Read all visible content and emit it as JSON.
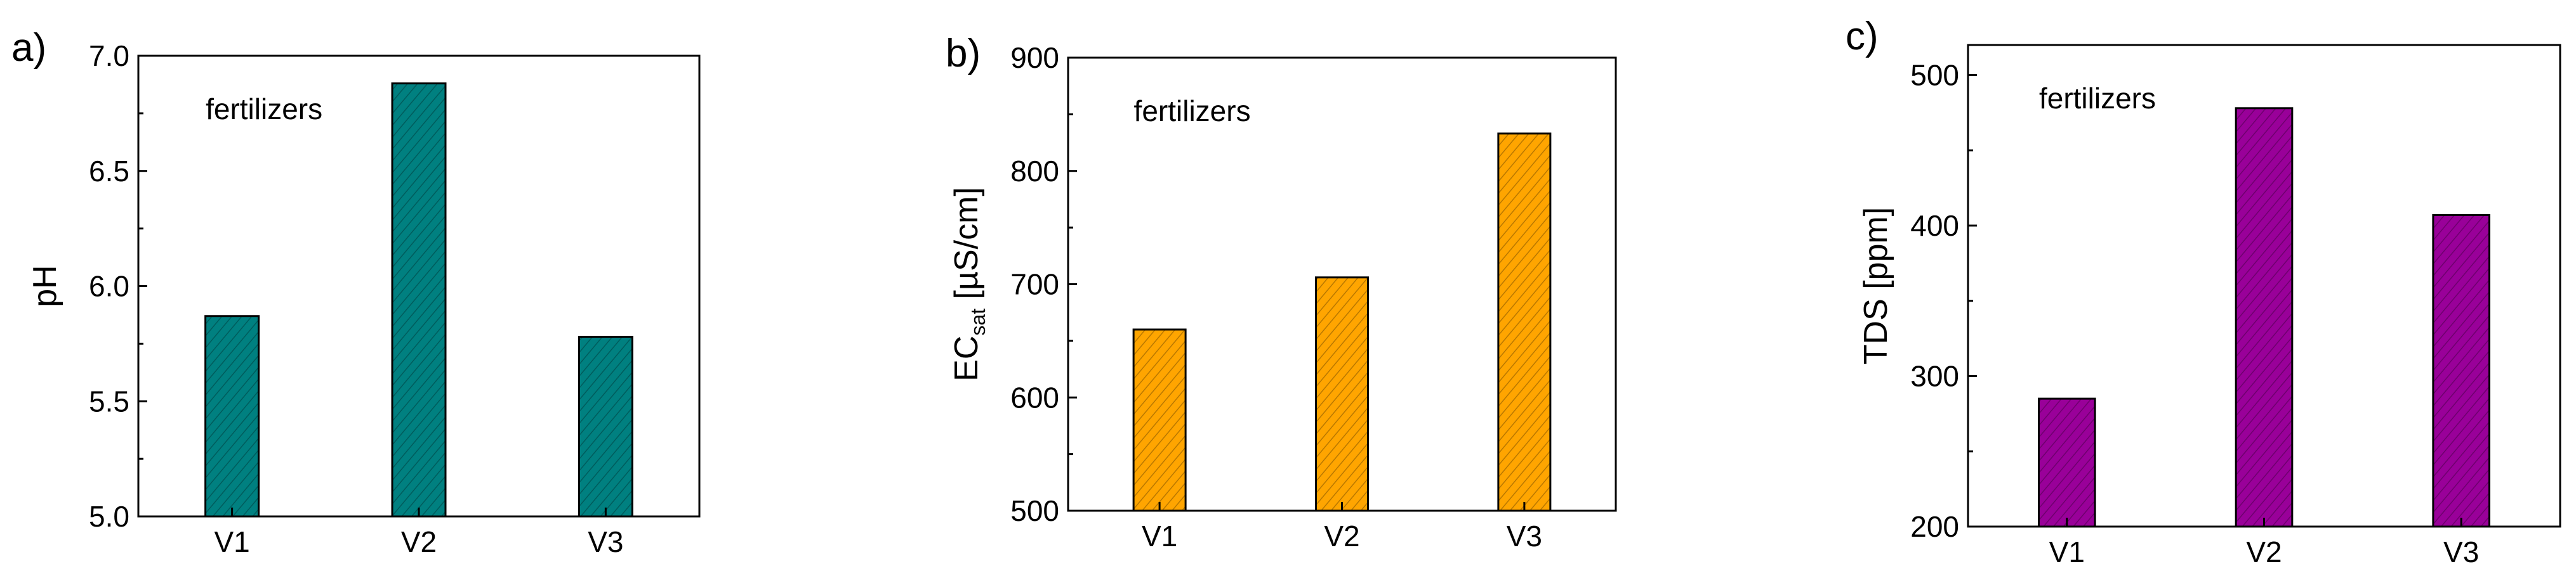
{
  "chart_data": [
    {
      "type": "bar",
      "panel_letter": "a)",
      "annotation": "fertilizers",
      "ylabel": "pH",
      "ylabel_sub": "",
      "ylabel_suffix": "",
      "categories": [
        "V1",
        "V2",
        "V3"
      ],
      "values": [
        5.87,
        6.88,
        5.78
      ],
      "ylim": [
        5.0,
        7.0
      ],
      "yticks": [
        5.0,
        5.5,
        6.0,
        6.5,
        7.0
      ],
      "ytick_labels": [
        "5.0",
        "5.5",
        "6.0",
        "6.5",
        "7.0"
      ],
      "color": "#008080",
      "hatch": "diagonal",
      "grid": false
    },
    {
      "type": "bar",
      "panel_letter": "b)",
      "annotation": "fertilizers",
      "ylabel": "EC",
      "ylabel_sub": "sat",
      "ylabel_suffix": " [µS/cm]",
      "categories": [
        "V1",
        "V2",
        "V3"
      ],
      "values": [
        660,
        706,
        833
      ],
      "ylim": [
        500,
        900
      ],
      "yticks": [
        500,
        600,
        700,
        800,
        900
      ],
      "ytick_labels": [
        "500",
        "600",
        "700",
        "800",
        "900"
      ],
      "color": "#FFA500",
      "hatch": "diagonal",
      "grid": false
    },
    {
      "type": "bar",
      "panel_letter": "c)",
      "annotation": "fertilizers",
      "ylabel": "TDS [ppm]",
      "ylabel_sub": "",
      "ylabel_suffix": "",
      "categories": [
        "V1",
        "V2",
        "V3"
      ],
      "values": [
        285,
        478,
        407
      ],
      "ylim": [
        200,
        520
      ],
      "yticks": [
        200,
        300,
        400,
        500
      ],
      "ytick_labels": [
        "200",
        "300",
        "400",
        "500"
      ],
      "color": "#990099",
      "hatch": "diagonal",
      "grid": false
    }
  ]
}
